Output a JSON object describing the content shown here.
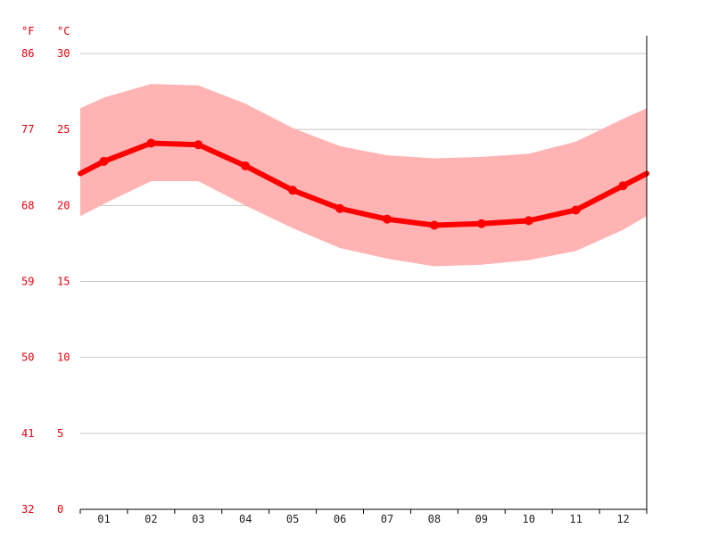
{
  "chart_data": {
    "type": "line",
    "title": "",
    "xlabel": "",
    "ylabel": "",
    "units": {
      "left": "°F",
      "right": "°C"
    },
    "categories": [
      "01",
      "02",
      "03",
      "04",
      "05",
      "06",
      "07",
      "08",
      "09",
      "10",
      "11",
      "12"
    ],
    "series": [
      {
        "values": [
          22.9,
          24.1,
          24.0,
          22.6,
          21.0,
          19.8,
          19.1,
          18.7,
          18.8,
          19.0,
          19.7,
          21.3
        ]
      }
    ],
    "band": {
      "upper": [
        27.1,
        28.0,
        27.9,
        26.7,
        25.1,
        23.9,
        23.3,
        23.1,
        23.2,
        23.4,
        24.2,
        25.7
      ],
      "lower": [
        20.1,
        21.6,
        21.6,
        20.0,
        18.5,
        17.2,
        16.5,
        16.0,
        16.1,
        16.4,
        17.0,
        18.4
      ],
      "edge_start": {
        "upper": 26.4,
        "line": 22.1,
        "lower": 19.3
      },
      "edge_end": {
        "upper": 26.4,
        "line": 22.1,
        "lower": 19.3
      }
    },
    "y_celsius_ticks": [
      "0",
      "5",
      "10",
      "15",
      "20",
      "25",
      "30"
    ],
    "y_fahrenheit_ticks": [
      "32",
      "41",
      "50",
      "59",
      "68",
      "77",
      "86"
    ],
    "ylim": [
      0,
      30
    ],
    "grid": true,
    "colors": {
      "line": "#ff0000",
      "band": "#ffb3b3",
      "labels": "#e8000c",
      "grid": "#c8c8c8",
      "axis": "#000000"
    }
  }
}
